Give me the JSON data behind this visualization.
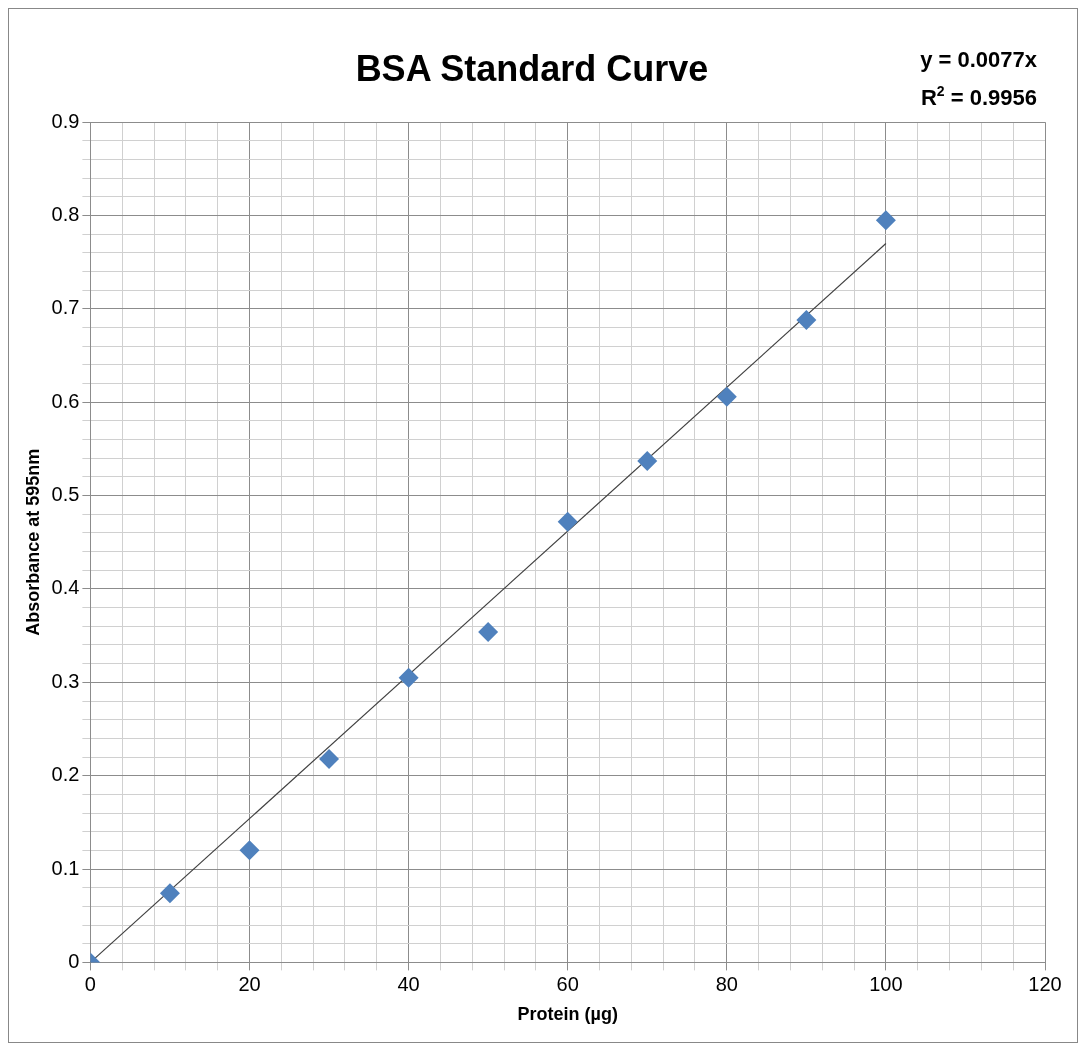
{
  "chart_data": {
    "type": "scatter",
    "title": "BSA Standard Curve",
    "xlabel": "Protein (µg)",
    "ylabel": "Absorbance at 595nm",
    "annotations": [
      "y = 0.0077x",
      "R$^{2}$ = 0.9956"
    ],
    "x": [
      0,
      10,
      20,
      30,
      40,
      50,
      60,
      70,
      80,
      90,
      100
    ],
    "series": [
      {
        "color": "#4f81bd",
        "values": [
          0,
          0.074,
          0.12,
          0.218,
          0.305,
          0.354,
          0.472,
          0.537,
          0.606,
          0.688,
          0.795
        ],
        "marker": "diamond"
      },
      {
        "type": "line",
        "color": "#404040",
        "x": [
          0,
          100
        ],
        "values": [
          0,
          0.77
        ],
        "marker": "none",
        "line_style": "solid"
      }
    ],
    "xlim": [
      0,
      120
    ],
    "xticks": [
      0,
      {
        "value": 4,
        "label": null
      },
      {
        "value": 8,
        "label": null
      },
      {
        "value": 12,
        "label": null
      },
      {
        "value": 16,
        "label": null
      },
      20,
      {
        "value": 24,
        "label": null
      },
      {
        "value": 28,
        "label": null
      },
      {
        "value": 32,
        "label": null
      },
      {
        "value": 36,
        "label": null
      },
      40,
      {
        "value": 44,
        "label": null
      },
      {
        "value": 48,
        "label": null
      },
      {
        "value": 52,
        "label": null
      },
      {
        "value": 56,
        "label": null
      },
      60,
      {
        "value": 64,
        "label": null
      },
      {
        "value": 68,
        "label": null
      },
      {
        "value": 72,
        "label": null
      },
      {
        "value": 76,
        "label": null
      },
      80,
      {
        "value": 84,
        "label": null
      },
      {
        "value": 88,
        "label": null
      },
      {
        "value": 92,
        "label": null
      },
      {
        "value": 96,
        "label": null
      },
      100,
      {
        "value": 104,
        "label": null
      },
      {
        "value": 108,
        "label": null
      },
      {
        "value": 112,
        "label": null
      },
      {
        "value": 116,
        "label": null
      },
      120
    ],
    "ylim": [
      0,
      0.9
    ],
    "yticks": [
      0,
      {
        "value": 0.02,
        "label": null
      },
      {
        "value": 0.04,
        "label": null
      },
      {
        "value": 0.06,
        "label": null
      },
      {
        "value": 0.08,
        "label": null
      },
      0.1,
      {
        "value": 0.12,
        "label": null
      },
      {
        "value": 0.14,
        "label": null
      },
      {
        "value": 0.16,
        "label": null
      },
      {
        "value": 0.18,
        "label": null
      },
      0.2,
      {
        "value": 0.22,
        "label": null
      },
      {
        "value": 0.24,
        "label": null
      },
      {
        "value": 0.26,
        "label": null
      },
      {
        "value": 0.28,
        "label": null
      },
      0.3,
      {
        "value": 0.32,
        "label": null
      },
      {
        "value": 0.34,
        "label": null
      },
      {
        "value": 0.36,
        "label": null
      },
      {
        "value": 0.38,
        "label": null
      },
      0.4,
      {
        "value": 0.42,
        "label": null
      },
      {
        "value": 0.44,
        "label": null
      },
      {
        "value": 0.46,
        "label": null
      },
      {
        "value": 0.48,
        "label": null
      },
      0.5,
      {
        "value": 0.52,
        "label": null
      },
      {
        "value": 0.54,
        "label": null
      },
      {
        "value": 0.56,
        "label": null
      },
      {
        "value": 0.58,
        "label": null
      },
      0.6,
      {
        "value": 0.62,
        "label": null
      },
      {
        "value": 0.64,
        "label": null
      },
      {
        "value": 0.66,
        "label": null
      },
      {
        "value": 0.68,
        "label": null
      },
      0.7,
      {
        "value": 0.72,
        "label": null
      },
      {
        "value": 0.74,
        "label": null
      },
      {
        "value": 0.76,
        "label": null
      },
      {
        "value": 0.78,
        "label": null
      },
      0.8,
      {
        "value": 0.82,
        "label": null
      },
      {
        "value": 0.84,
        "label": null
      },
      {
        "value": 0.86,
        "label": null
      },
      {
        "value": 0.88,
        "label": null
      },
      0.9
    ],
    "grid": true,
    "legend": false
  }
}
